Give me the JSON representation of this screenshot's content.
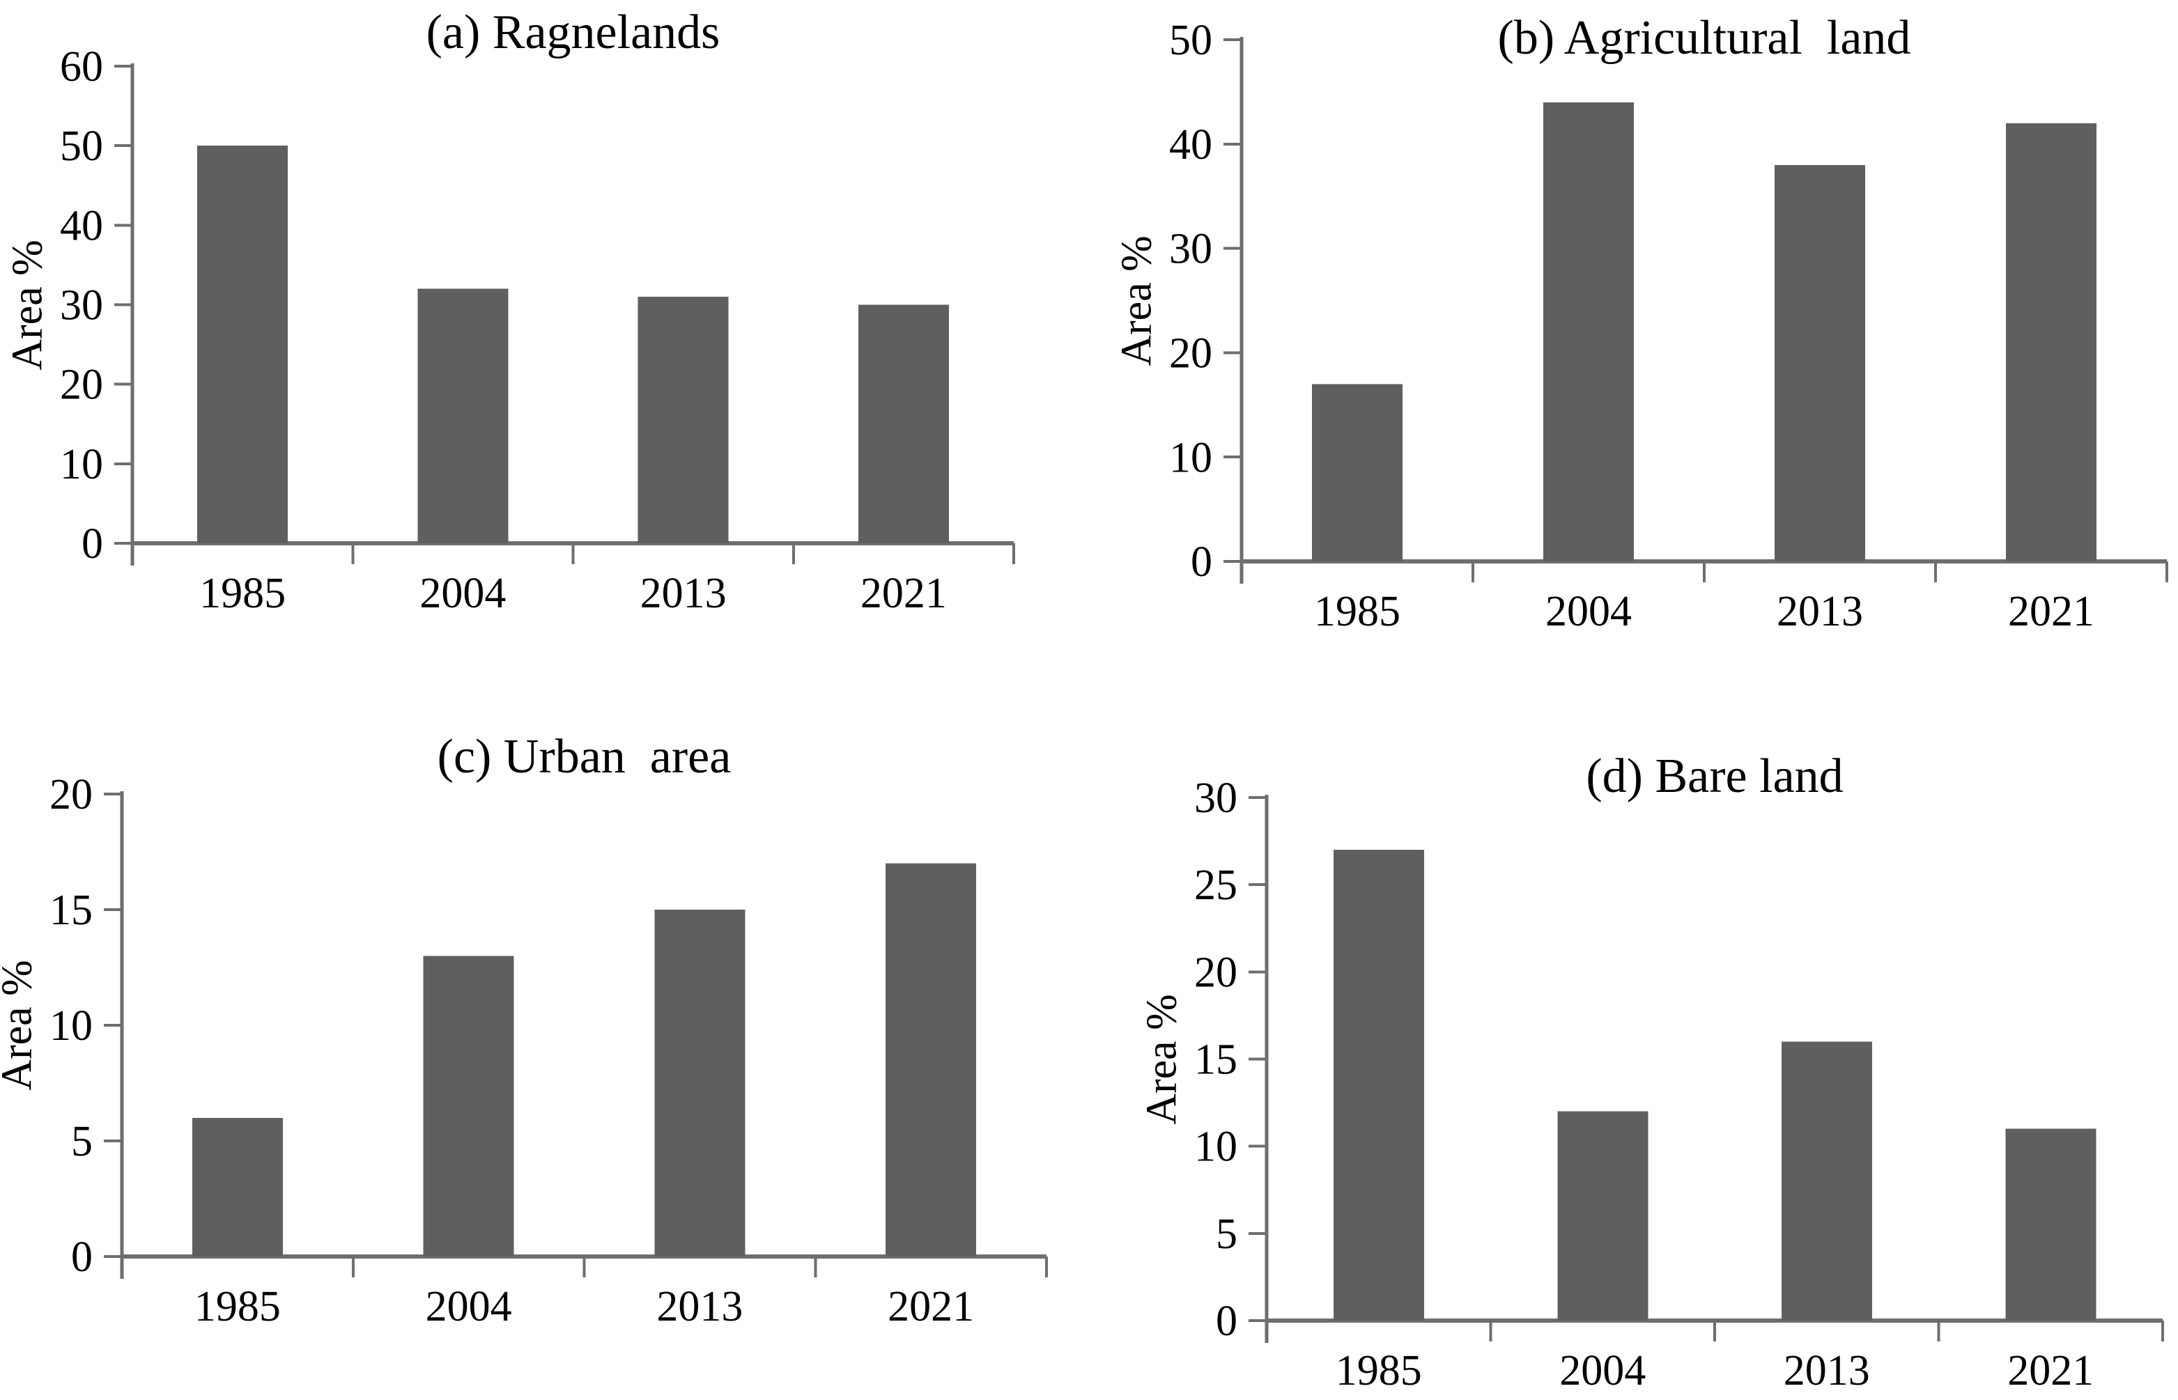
{
  "figure": {
    "background": "#ffffff",
    "bar_color": "#5f5f5f",
    "axis_color": "#6e6e6e",
    "text_color": "#000000"
  },
  "chart_data": [
    {
      "panel": "a",
      "type": "bar",
      "title": "(a) Ragnelands",
      "ylabel": "Area %",
      "xlabel": "",
      "categories": [
        "1985",
        "2004",
        "2013",
        "2021"
      ],
      "values": [
        50,
        32,
        31,
        30
      ],
      "ylim": [
        0,
        60
      ],
      "ytick_step": 10,
      "yticks": [
        0,
        10,
        20,
        30,
        40,
        50,
        60
      ],
      "grid": false,
      "legend": "none"
    },
    {
      "panel": "b",
      "type": "bar",
      "title": "(b) Agricultural  land",
      "ylabel": "Area %",
      "xlabel": "",
      "categories": [
        "1985",
        "2004",
        "2013",
        "2021"
      ],
      "values": [
        17,
        44,
        38,
        42
      ],
      "ylim": [
        0,
        50
      ],
      "ytick_step": 10,
      "yticks": [
        0,
        10,
        20,
        30,
        40,
        50
      ],
      "grid": false,
      "legend": "none"
    },
    {
      "panel": "c",
      "type": "bar",
      "title": "(c) Urban  area",
      "ylabel": "Area %",
      "xlabel": "",
      "categories": [
        "1985",
        "2004",
        "2013",
        "2021"
      ],
      "values": [
        6,
        13,
        15,
        17
      ],
      "ylim": [
        0,
        20
      ],
      "ytick_step": 5,
      "yticks": [
        0,
        5,
        10,
        15,
        20
      ],
      "grid": false,
      "legend": "none"
    },
    {
      "panel": "d",
      "type": "bar",
      "title": "(d) Bare land",
      "ylabel": "Area %",
      "xlabel": "",
      "categories": [
        "1985",
        "2004",
        "2013",
        "2021"
      ],
      "values": [
        27,
        12,
        16,
        11
      ],
      "ylim": [
        0,
        30
      ],
      "ytick_step": 5,
      "yticks": [
        0,
        5,
        10,
        15,
        20,
        25,
        30
      ],
      "grid": false,
      "legend": "none"
    }
  ]
}
